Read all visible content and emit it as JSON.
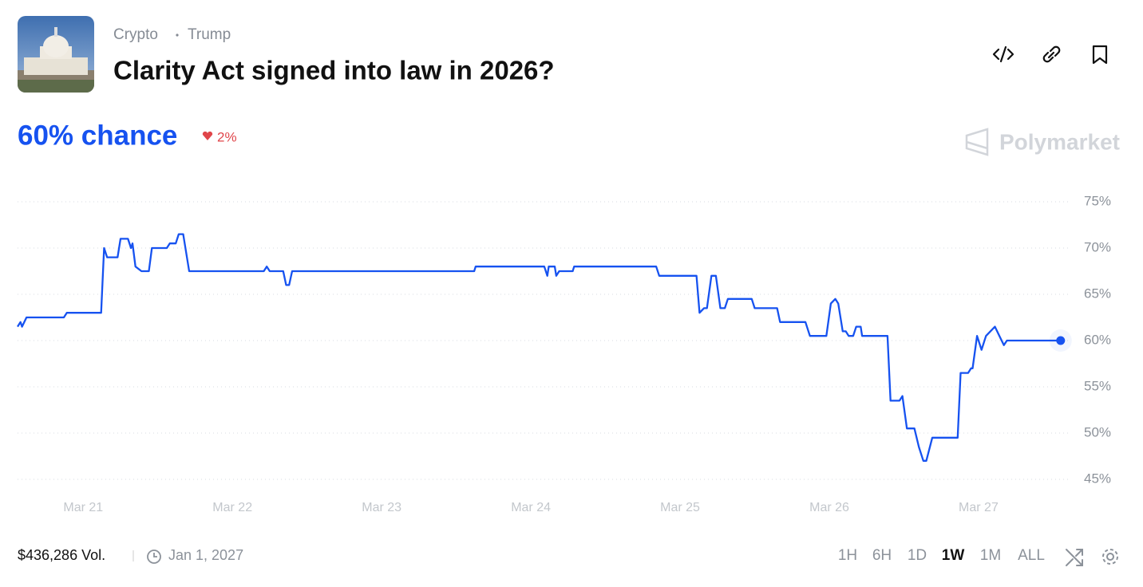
{
  "header": {
    "tags": [
      "Crypto",
      "Trump"
    ],
    "title": "Clarity Act signed into law in 2026?",
    "chance": "60% chance",
    "change": "2%",
    "brand": "Polymarket"
  },
  "chart_data": {
    "type": "line",
    "color": "#1652f0",
    "x": [
      20.56,
      20.58,
      20.59,
      20.62,
      20.87,
      20.89,
      21.12,
      21.14,
      21.16,
      21.23,
      21.25,
      21.3,
      21.32,
      21.33,
      21.35,
      21.39,
      21.44,
      21.46,
      21.49,
      21.56,
      21.58,
      21.62,
      21.64,
      21.67,
      21.71,
      22.21,
      22.23,
      22.25,
      22.34,
      22.36,
      22.38,
      22.4,
      23.62,
      23.63,
      24.09,
      24.11,
      24.12,
      24.16,
      24.17,
      24.19,
      24.28,
      24.29,
      24.84,
      24.86,
      25.11,
      25.13,
      25.16,
      25.18,
      25.21,
      25.24,
      25.27,
      25.3,
      25.32,
      25.48,
      25.5,
      25.65,
      25.67,
      25.84,
      25.87,
      25.98,
      26.01,
      26.04,
      26.06,
      26.09,
      26.11,
      26.13,
      26.16,
      26.18,
      26.21,
      26.22,
      26.39,
      26.41,
      26.47,
      26.49,
      26.52,
      26.57,
      26.6,
      26.63,
      26.65,
      26.69,
      26.86,
      26.88,
      26.93,
      26.95,
      26.96,
      26.99,
      27.02,
      27.05,
      27.11,
      27.14,
      27.17,
      27.19,
      27.55
    ],
    "values": [
      61.5,
      62,
      61.5,
      62.5,
      62.5,
      63,
      63,
      70,
      69,
      69,
      71,
      71,
      70,
      70.5,
      68,
      67.5,
      67.5,
      70,
      70,
      70,
      70.5,
      70.5,
      71.5,
      71.5,
      67.5,
      67.5,
      68,
      67.5,
      67.5,
      66,
      66,
      67.5,
      67.5,
      68,
      68,
      67,
      68,
      68,
      67,
      67.5,
      67.5,
      68,
      68,
      67,
      67,
      63,
      63.5,
      63.5,
      67,
      67,
      63.5,
      63.5,
      64.5,
      64.5,
      63.5,
      63.5,
      62,
      62,
      60.5,
      60.5,
      64,
      64.5,
      64,
      61,
      61,
      60.5,
      60.5,
      61.5,
      61.5,
      60.5,
      60.5,
      53.5,
      53.5,
      54,
      50.5,
      50.5,
      48.5,
      47,
      47,
      49.5,
      49.5,
      56.5,
      56.5,
      57,
      57,
      60.5,
      59,
      60.5,
      61.5,
      60.5,
      59.5,
      60,
      60
    ],
    "xlim": [
      20.56,
      27.61
    ],
    "xticks": [
      {
        "value": 21,
        "label": "Mar 21"
      },
      {
        "value": 22,
        "label": "Mar 22"
      },
      {
        "value": 23,
        "label": "Mar 23"
      },
      {
        "value": 24,
        "label": "Mar 24"
      },
      {
        "value": 25,
        "label": "Mar 25"
      },
      {
        "value": 26,
        "label": "Mar 26"
      },
      {
        "value": 27,
        "label": "Mar 27"
      }
    ],
    "ylim": [
      45,
      75
    ],
    "yticks": [
      {
        "value": 75,
        "label": "75%"
      },
      {
        "value": 70,
        "label": "70%"
      },
      {
        "value": 65,
        "label": "65%"
      },
      {
        "value": 60,
        "label": "60%"
      },
      {
        "value": 55,
        "label": "55%"
      },
      {
        "value": 50,
        "label": "50%"
      },
      {
        "value": 45,
        "label": "45%"
      }
    ],
    "grid": true
  },
  "footer": {
    "volume": "$436,286 Vol.",
    "end_date": "Jan 1, 2027",
    "timeframes": [
      "1H",
      "6H",
      "1D",
      "1W",
      "1M",
      "ALL"
    ],
    "selected": "1W"
  }
}
